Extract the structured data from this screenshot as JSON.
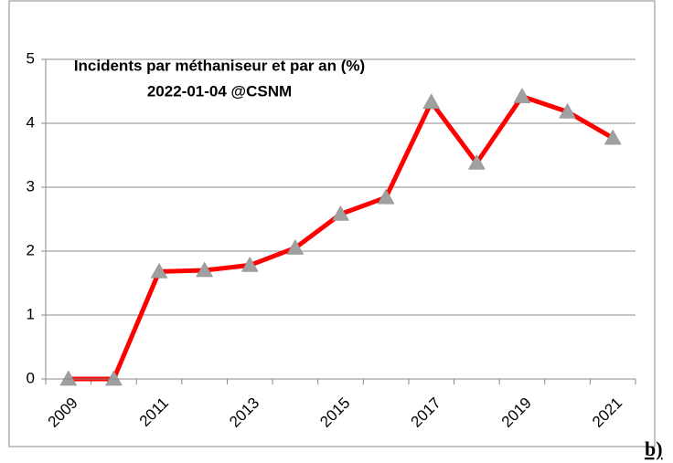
{
  "chart_data": {
    "type": "line",
    "title": "Incidents par méthaniseur et par an (%)",
    "subtitle": "2022-01-04 @CSNM",
    "categories": [
      "2009",
      null,
      "2011",
      null,
      "2013",
      null,
      "2015",
      null,
      "2017",
      null,
      "2019",
      null,
      "2021"
    ],
    "series": [
      {
        "name": "Incidents",
        "color": "#ff0000",
        "marker_color": "#a0a0a0",
        "values": [
          0,
          0,
          1.68,
          1.7,
          1.78,
          2.05,
          2.58,
          2.84,
          4.33,
          3.38,
          4.42,
          4.18,
          3.77
        ]
      }
    ],
    "ylim": [
      0,
      5
    ],
    "yticks": [
      0,
      1,
      2,
      3,
      4,
      5
    ],
    "grid": true
  },
  "caption": "b)"
}
